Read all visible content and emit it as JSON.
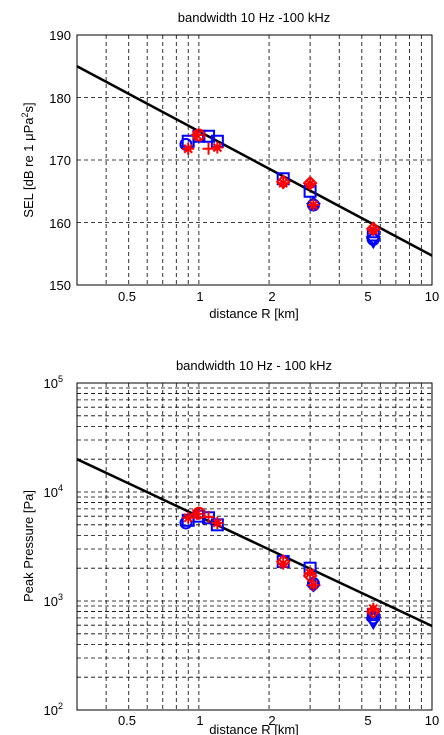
{
  "charts": {
    "top": {
      "title": "bandwidth 10 Hz -100 kHz",
      "xlabel": "distance R [km]",
      "ylabel_parts": [
        "SEL [dB re 1 μPa",
        "2",
        "s]"
      ],
      "xticks": [
        "0.5",
        "1",
        "2",
        "5",
        "10"
      ],
      "yticks": [
        "150",
        "160",
        "170",
        "180",
        "190"
      ]
    },
    "bottom": {
      "title": "bandwidth 10 Hz - 100 kHz",
      "xlabel": "distance R [km]",
      "ylabel": "Peak Pressure [Pa]",
      "xticks": [
        "0.5",
        "1",
        "2",
        "5",
        "10"
      ],
      "yticks": [
        {
          "base": "10",
          "exp": "2"
        },
        {
          "base": "10",
          "exp": "3"
        },
        {
          "base": "10",
          "exp": "4"
        },
        {
          "base": "10",
          "exp": "5"
        }
      ]
    }
  },
  "chart_data": [
    {
      "type": "scatter",
      "title": "bandwidth 10 Hz -100 kHz",
      "xlabel": "distance R [km]",
      "ylabel": "SEL [dB re 1 μPa²s]",
      "xscale": "log",
      "xlim": [
        0.3,
        10
      ],
      "ylim": [
        150,
        190
      ],
      "grid": true,
      "colors": {
        "red": "#ff0000",
        "blue": "#0000ff",
        "fit": "#000000"
      },
      "fit_line": {
        "x": [
          0.3,
          10
        ],
        "y": [
          185,
          154.7
        ]
      },
      "series": [
        {
          "marker": "square",
          "color": "#0000ff",
          "x": [
            0.9,
            1.0,
            1.1,
            1.2,
            2.3,
            3.0,
            5.6
          ],
          "y": [
            173,
            173.8,
            173.8,
            173,
            167,
            165,
            158
          ]
        },
        {
          "marker": "circle",
          "color": "#0000ff",
          "x": [
            0.88,
            3.1,
            5.6
          ],
          "y": [
            172.5,
            162.8,
            157.3
          ]
        },
        {
          "marker": "diamond",
          "color": "#0000ff",
          "x": [
            3.1,
            5.6
          ],
          "y": [
            163,
            157.5
          ]
        },
        {
          "marker": "triangle-down",
          "color": "#0000ff",
          "x": [
            5.6
          ],
          "y": [
            157
          ]
        },
        {
          "marker": "star",
          "color": "#ff0000",
          "x": [
            0.9,
            0.98,
            1.2,
            2.3,
            3.0,
            3.1,
            5.6
          ],
          "y": [
            171.8,
            174,
            172,
            166.3,
            166.2,
            162.8,
            158.8
          ]
        },
        {
          "marker": "plus",
          "color": "#ff0000",
          "x": [
            1.1
          ],
          "y": [
            171.8
          ]
        },
        {
          "marker": "diamond",
          "color": "#ff0000",
          "x": [
            2.3,
            3.0,
            5.6
          ],
          "y": [
            166.5,
            166.3,
            159
          ]
        },
        {
          "marker": "circle",
          "color": "#ff0000",
          "x": [
            1.0
          ],
          "y": [
            174
          ]
        }
      ]
    },
    {
      "type": "scatter",
      "title": "bandwidth 10 Hz - 100 kHz",
      "xlabel": "distance R [km]",
      "ylabel": "Peak Pressure [Pa]",
      "xscale": "log",
      "yscale": "log",
      "xlim": [
        0.3,
        10
      ],
      "ylim": [
        100,
        100000
      ],
      "grid": true,
      "colors": {
        "red": "#ff0000",
        "blue": "#0000ff",
        "fit": "#000000"
      },
      "fit_line": {
        "x": [
          0.3,
          10
        ],
        "y": [
          20000,
          590
        ]
      },
      "series": [
        {
          "marker": "square",
          "color": "#0000ff",
          "x": [
            0.9,
            1.0,
            1.1,
            1.2,
            2.3,
            3.0,
            5.6
          ],
          "y": [
            5500,
            6000,
            5800,
            5000,
            2300,
            2000,
            750
          ]
        },
        {
          "marker": "circle",
          "color": "#0000ff",
          "x": [
            0.88,
            3.1,
            5.6
          ],
          "y": [
            5200,
            1450,
            700
          ]
        },
        {
          "marker": "diamond",
          "color": "#0000ff",
          "x": [
            3.1,
            5.6
          ],
          "y": [
            1400,
            680
          ]
        },
        {
          "marker": "triangle-down",
          "color": "#0000ff",
          "x": [
            5.6
          ],
          "y": [
            640
          ]
        },
        {
          "marker": "star",
          "color": "#ff0000",
          "x": [
            0.9,
            0.98,
            1.2,
            2.3,
            3.0,
            3.1,
            5.6
          ],
          "y": [
            5800,
            6300,
            5200,
            2200,
            1800,
            1400,
            850
          ]
        },
        {
          "marker": "plus",
          "color": "#ff0000",
          "x": [
            1.1
          ],
          "y": [
            5900
          ]
        },
        {
          "marker": "diamond",
          "color": "#ff0000",
          "x": [
            2.3,
            3.0,
            5.6
          ],
          "y": [
            2300,
            1700,
            800
          ]
        },
        {
          "marker": "circle",
          "color": "#ff0000",
          "x": [
            1.0
          ],
          "y": [
            6400
          ]
        }
      ]
    }
  ]
}
